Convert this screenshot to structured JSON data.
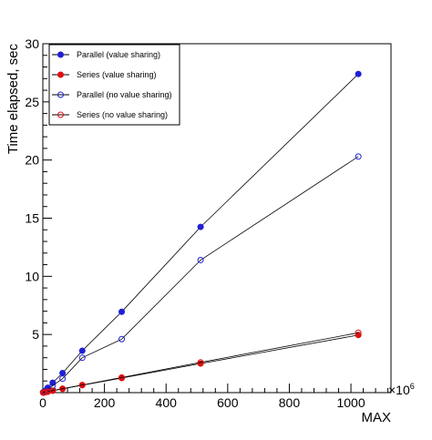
{
  "chart_data": {
    "type": "line",
    "xlabel": "MAX",
    "ylabel": "Time elapsed, sec",
    "x_multiplier_label": "×10",
    "x_multiplier_exponent": "6",
    "xlim": [
      0,
      1130
    ],
    "ylim": [
      0,
      30
    ],
    "x_ticks": [
      0,
      200,
      400,
      600,
      800,
      1000
    ],
    "y_ticks": [
      5,
      10,
      15,
      20,
      25,
      30
    ],
    "grid": false,
    "legend_position": "top-left",
    "x": [
      1,
      2,
      4,
      8,
      16,
      32,
      64,
      128,
      256,
      512,
      1024
    ],
    "series": [
      {
        "name": "Parallel (value sharing)",
        "color": "#1f1fd6",
        "marker": "filled-circle",
        "values": [
          0.03,
          0.04,
          0.08,
          0.17,
          0.42,
          0.85,
          1.68,
          3.6,
          6.95,
          14.25,
          27.4
        ]
      },
      {
        "name": "Series (value sharing)",
        "color": "#dd1111",
        "marker": "filled-circle",
        "values": [
          0.01,
          0.01,
          0.02,
          0.04,
          0.08,
          0.16,
          0.32,
          0.64,
          1.25,
          2.5,
          4.95
        ]
      },
      {
        "name": "Parallel (no value sharing)",
        "color": "#1f1fd6",
        "marker": "open-circle",
        "values": [
          0.02,
          0.04,
          0.07,
          0.14,
          0.3,
          0.6,
          1.2,
          3.0,
          4.6,
          11.4,
          20.3
        ]
      },
      {
        "name": "Series (no value sharing)",
        "color": "#dd1111",
        "marker": "open-circle",
        "values": [
          0.01,
          0.01,
          0.02,
          0.04,
          0.09,
          0.17,
          0.34,
          0.66,
          1.3,
          2.6,
          5.15
        ]
      }
    ]
  }
}
